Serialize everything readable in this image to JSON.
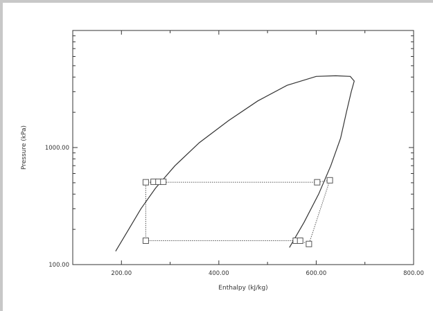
{
  "chart_data": {
    "type": "line",
    "title": "",
    "xlabel": "Enthalpy (kJ/kg)",
    "ylabel": "Pressure (kPa)",
    "xscale": "linear",
    "yscale": "log",
    "xlim": [
      100,
      800
    ],
    "ylim": [
      100,
      10000
    ],
    "x_ticks": [
      {
        "value": 200,
        "label": "200.00"
      },
      {
        "value": 400,
        "label": "400.00"
      },
      {
        "value": 600,
        "label": "600.00"
      },
      {
        "value": 800,
        "label": "800.00"
      }
    ],
    "y_ticks": [
      {
        "value": 100,
        "label": "100.00"
      },
      {
        "value": 1000,
        "label": "1000.00"
      }
    ],
    "grid": false,
    "legend": "none",
    "series": [
      {
        "role": "saturation dome",
        "color": "#333333",
        "style": "solid",
        "points": [
          [
            188,
            130
          ],
          [
            215,
            200
          ],
          [
            240,
            300
          ],
          [
            270,
            450
          ],
          [
            310,
            700
          ],
          [
            360,
            1100
          ],
          [
            420,
            1700
          ],
          [
            480,
            2500
          ],
          [
            540,
            3400
          ],
          [
            600,
            4050
          ],
          [
            640,
            4100
          ],
          [
            670,
            4050
          ],
          [
            678,
            3700
          ],
          [
            672,
            3000
          ],
          [
            662,
            2000
          ],
          [
            650,
            1200
          ],
          [
            630,
            700
          ],
          [
            605,
            400
          ],
          [
            575,
            230
          ],
          [
            545,
            140
          ]
        ]
      },
      {
        "role": "cycle",
        "color": "#555555",
        "style": "dotted",
        "points": [
          [
            250,
            160
          ],
          [
            250,
            505
          ],
          [
            602,
            505
          ],
          [
            628,
            525
          ],
          [
            585,
            150
          ],
          [
            565,
            160
          ],
          [
            250,
            160
          ]
        ]
      }
    ],
    "markers": [
      [
        250,
        505
      ],
      [
        266,
        510
      ],
      [
        276,
        510
      ],
      [
        286,
        510
      ],
      [
        602,
        505
      ],
      [
        628,
        525
      ],
      [
        250,
        160
      ],
      [
        558,
        160
      ],
      [
        567,
        160
      ],
      [
        585,
        150
      ]
    ]
  }
}
